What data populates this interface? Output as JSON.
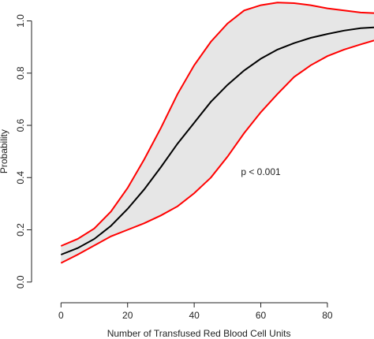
{
  "chart_data": {
    "type": "line",
    "title": "",
    "xlabel": "Number of Transfused Red Blood Cell Units",
    "ylabel": "Probability",
    "xlim": [
      -6,
      94
    ],
    "ylim": [
      -0.04,
      1.08
    ],
    "xticks": [
      0,
      20,
      40,
      60,
      80
    ],
    "yticks": [
      0.0,
      0.2,
      0.4,
      0.6,
      0.8,
      1.0
    ],
    "xtick_labels": [
      "0",
      "20",
      "40",
      "60",
      "80"
    ],
    "ytick_labels": [
      "0.0",
      "0.2",
      "0.4",
      "0.6",
      "0.8",
      "1.0"
    ],
    "grid": false,
    "annotation": {
      "text": "p < 0.001",
      "x": 60,
      "y": 0.41
    },
    "series": [
      {
        "role": "estimate",
        "color": "#000000",
        "points": [
          [
            0,
            0.105
          ],
          [
            5,
            0.13
          ],
          [
            10,
            0.165
          ],
          [
            15,
            0.215
          ],
          [
            20,
            0.28
          ],
          [
            25,
            0.355
          ],
          [
            30,
            0.44
          ],
          [
            35,
            0.53
          ],
          [
            40,
            0.61
          ],
          [
            45,
            0.69
          ],
          [
            50,
            0.755
          ],
          [
            55,
            0.81
          ],
          [
            60,
            0.855
          ],
          [
            65,
            0.89
          ],
          [
            70,
            0.915
          ],
          [
            75,
            0.935
          ],
          [
            80,
            0.95
          ],
          [
            85,
            0.963
          ],
          [
            90,
            0.972
          ],
          [
            94,
            0.975
          ]
        ]
      },
      {
        "role": "upper-ci",
        "color": "#ff0000",
        "points": [
          [
            0,
            0.138
          ],
          [
            5,
            0.165
          ],
          [
            10,
            0.205
          ],
          [
            15,
            0.27
          ],
          [
            20,
            0.36
          ],
          [
            25,
            0.47
          ],
          [
            30,
            0.59
          ],
          [
            35,
            0.72
          ],
          [
            40,
            0.83
          ],
          [
            45,
            0.92
          ],
          [
            50,
            0.99
          ],
          [
            55,
            1.04
          ],
          [
            60,
            1.06
          ],
          [
            65,
            1.07
          ],
          [
            70,
            1.068
          ],
          [
            75,
            1.06
          ],
          [
            80,
            1.048
          ],
          [
            85,
            1.04
          ],
          [
            90,
            1.032
          ],
          [
            94,
            1.03
          ]
        ]
      },
      {
        "role": "lower-ci",
        "color": "#ff0000",
        "points": [
          [
            0,
            0.073
          ],
          [
            5,
            0.105
          ],
          [
            10,
            0.14
          ],
          [
            15,
            0.175
          ],
          [
            20,
            0.2
          ],
          [
            25,
            0.225
          ],
          [
            30,
            0.255
          ],
          [
            35,
            0.29
          ],
          [
            40,
            0.34
          ],
          [
            45,
            0.4
          ],
          [
            50,
            0.48
          ],
          [
            55,
            0.57
          ],
          [
            60,
            0.65
          ],
          [
            65,
            0.72
          ],
          [
            70,
            0.785
          ],
          [
            75,
            0.83
          ],
          [
            80,
            0.865
          ],
          [
            85,
            0.89
          ],
          [
            90,
            0.91
          ],
          [
            94,
            0.925
          ]
        ]
      }
    ],
    "band_color": "#e6e6e6"
  }
}
